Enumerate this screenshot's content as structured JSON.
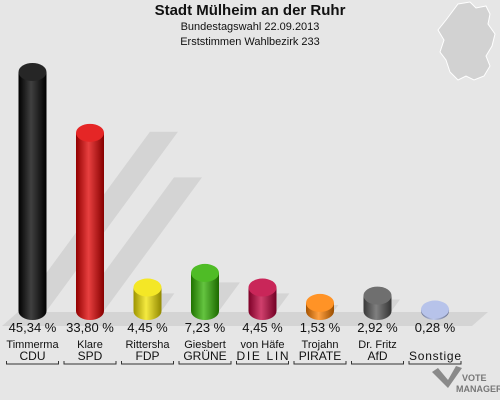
{
  "header": {
    "title": "Stadt Mülheim an der Ruhr",
    "subtitle": "Bundestagswahl 22.09.2013",
    "subtitle2": "Erststimmen Wahlbezirk 233"
  },
  "chart_data": {
    "type": "bar",
    "categories": [
      "CDU",
      "SPD",
      "FDP",
      "GRÜNE",
      "DIE LIN",
      "PIRATE",
      "AfD",
      "Sonstige"
    ],
    "candidates": [
      "Timmerma",
      "Klare",
      "Rittersha",
      "Giesbert",
      "von Häfe",
      "Trojahn",
      "Dr. Fritz",
      ""
    ],
    "values": [
      45.34,
      33.8,
      4.45,
      7.23,
      4.45,
      1.53,
      2.92,
      0.28
    ],
    "value_labels": [
      "45,34 %",
      "33,80 %",
      "4,45 %",
      "7,23 %",
      "4,45 %",
      "1,53 %",
      "2,92 %",
      "0,28 %"
    ],
    "colors": [
      "#000000",
      "#e00000",
      "#f2e300",
      "#30b000",
      "#c0003c",
      "#ff8000",
      "#555555",
      "#aab8e6"
    ],
    "ylim": [
      0,
      45.34
    ]
  },
  "logo": {
    "line1": "VOTE",
    "line2": "MANAGER"
  }
}
